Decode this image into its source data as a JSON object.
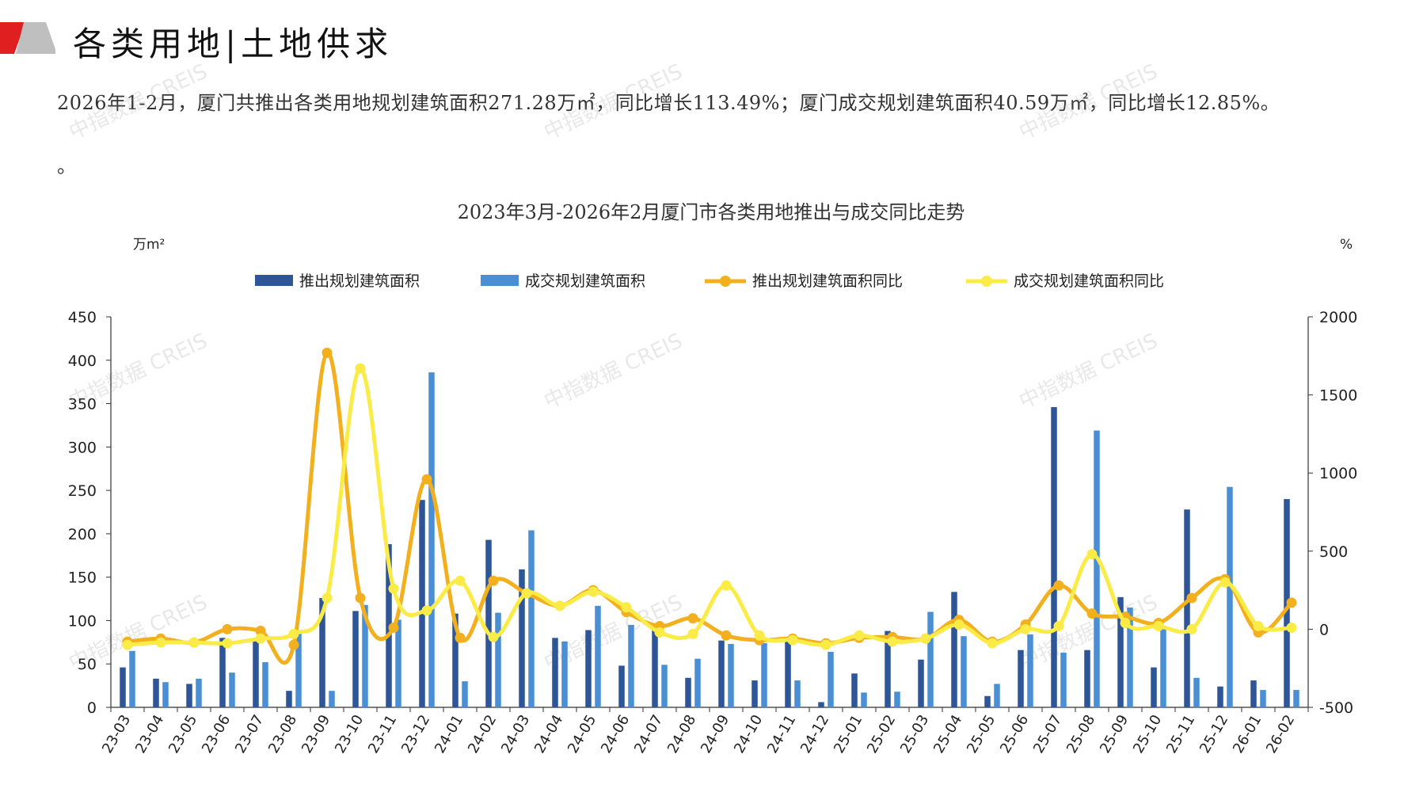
{
  "page": {
    "title": "各类用地|土地供求",
    "summary": "2026年1-2月，厦门共推出各类用地规划建筑面积271.28万㎡，同比增长113.49%；厦门成交规划建筑面积40.59万㎡，同比增长12.85%。",
    "summary_tail": "。",
    "watermark": "中指数据 CREIS"
  },
  "colors": {
    "supply_bar": "#2E5597",
    "deal_bar": "#4A8FD4",
    "supply_yoy": "#F2B01E",
    "deal_yoy": "#FAEB46",
    "header_red": "#E02020",
    "header_grey": "#BFBFBF"
  },
  "chart_data": {
    "type": "bar",
    "title": "2023年3月-2026年2月厦门市各类用地推出与成交同比走势",
    "ylabel": "万m²",
    "y2label": "%",
    "ylim": [
      0,
      450
    ],
    "y2lim": [
      -500,
      2000
    ],
    "yticks": [
      "0",
      "50",
      "100",
      "150",
      "200",
      "250",
      "300",
      "350",
      "400",
      "450"
    ],
    "y2ticks": [
      "-500",
      "0",
      "500",
      "1000",
      "1500",
      "2000"
    ],
    "legend_position": "top",
    "grid": false,
    "categories": [
      "23-03",
      "23-04",
      "23-05",
      "23-06",
      "23-07",
      "23-08",
      "23-09",
      "23-10",
      "23-11",
      "23-12",
      "24-01",
      "24-02",
      "24-03",
      "24-04",
      "24-05",
      "24-06",
      "24-07",
      "24-08",
      "24-09",
      "24-10",
      "24-11",
      "24-12",
      "25-01",
      "25-02",
      "25-03",
      "25-04",
      "25-05",
      "25-06",
      "25-07",
      "25-08",
      "25-09",
      "25-10",
      "25-11",
      "25-12",
      "26-01",
      "26-02"
    ],
    "series": [
      {
        "name": "推出规划建筑面积",
        "kind": "bar",
        "axis": "left",
        "values": [
          46,
          33,
          27,
          80,
          78,
          19,
          126,
          111,
          188,
          239,
          108,
          193,
          159,
          80,
          89,
          48,
          95,
          34,
          77,
          31,
          81,
          6,
          39,
          88,
          55,
          133,
          13,
          66,
          346,
          66,
          127,
          46,
          228,
          24,
          31,
          240
        ]
      },
      {
        "name": "成交规划建筑面积",
        "kind": "bar",
        "axis": "left",
        "values": [
          65,
          29,
          33,
          40,
          52,
          87,
          19,
          118,
          101,
          386,
          30,
          109,
          204,
          76,
          117,
          95,
          49,
          56,
          73,
          74,
          31,
          64,
          17,
          18,
          110,
          82,
          27,
          84,
          63,
          319,
          115,
          91,
          34,
          254,
          20,
          20
        ]
      },
      {
        "name": "推出规划建筑面积同比",
        "kind": "line",
        "axis": "right",
        "values": [
          -80,
          -60,
          -85,
          0,
          -10,
          -100,
          1770,
          200,
          10,
          960,
          -55,
          310,
          230,
          150,
          250,
          110,
          20,
          70,
          -40,
          -70,
          -60,
          -90,
          -55,
          -50,
          -60,
          60,
          -80,
          30,
          280,
          100,
          80,
          40,
          200,
          320,
          -20,
          170
        ]
      },
      {
        "name": "成交规划建筑面积同比",
        "kind": "line",
        "axis": "right",
        "values": [
          -100,
          -85,
          -85,
          -90,
          -60,
          -30,
          200,
          1670,
          260,
          120,
          310,
          -50,
          230,
          150,
          240,
          140,
          -20,
          -30,
          280,
          -40,
          -70,
          -100,
          -40,
          -80,
          -60,
          30,
          -90,
          0,
          20,
          480,
          40,
          20,
          0,
          300,
          20,
          10
        ]
      }
    ]
  }
}
